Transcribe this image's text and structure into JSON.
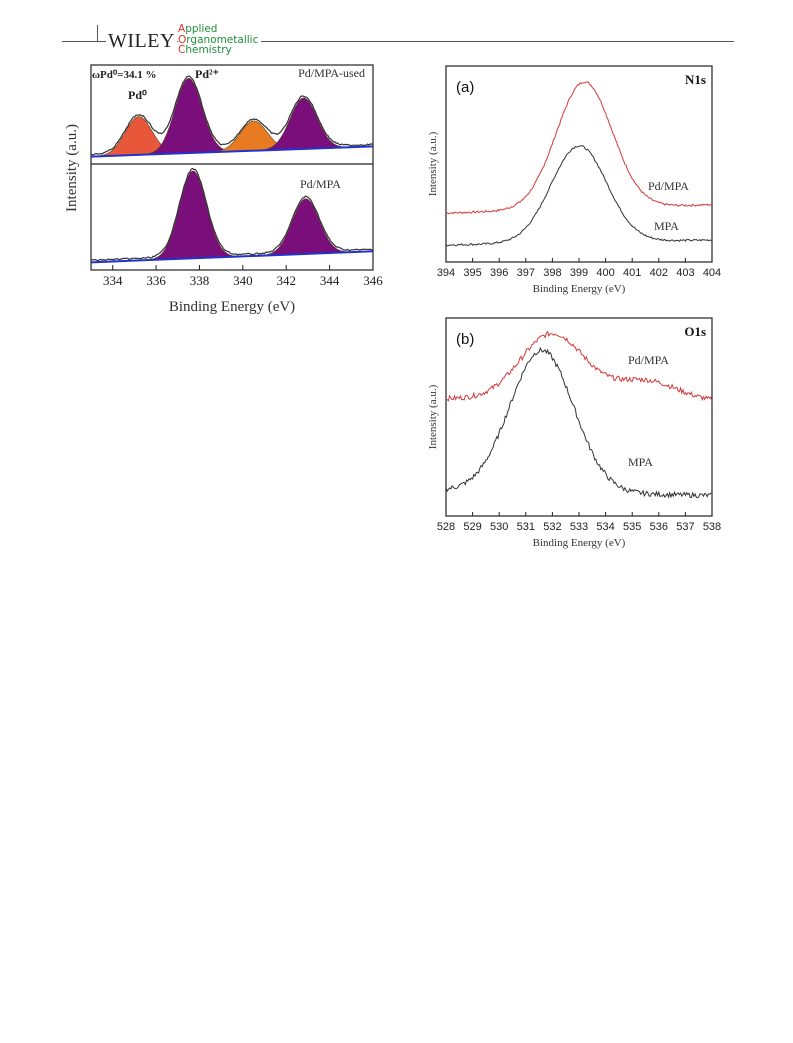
{
  "header": {
    "publisher": "WILEY",
    "journal_line1": "Applied",
    "journal_line2": "Organometallic",
    "journal_line3": "Chemistry",
    "accent_colors": {
      "green": "#1f8f3a",
      "red": "#d9342b"
    }
  },
  "figure_left": {
    "ylabel": "Intensity (a.u.)",
    "xlabel": "Binding Energy (eV)",
    "xticks": [
      "334",
      "336",
      "338",
      "340",
      "342",
      "344",
      "346"
    ],
    "top": {
      "sample_label": "Pd/MPA-used",
      "ratio_label": "ωPd⁰=34.1 %",
      "peak_label_pd0": "Pd⁰",
      "peak_label_pd2": "Pd²⁺"
    },
    "bottom": {
      "sample_label": "Pd/MPA"
    }
  },
  "chart_data": [
    {
      "type": "line",
      "panel": "(a)",
      "title": "N1s",
      "xlabel": "Binding Energy (eV)",
      "ylabel": "Intensity (a.u.)",
      "xlim": [
        394,
        404
      ],
      "xticks": [
        "394",
        "395",
        "396",
        "397",
        "398",
        "399",
        "400",
        "401",
        "402",
        "403",
        "404"
      ],
      "series": [
        {
          "name": "Pd/MPA",
          "color": "#d43a3a",
          "peak_center": 399.2,
          "baseline_left": 0.22,
          "baseline_right": 0.27,
          "peak_height": 1.0
        },
        {
          "name": "MPA",
          "color": "#333333",
          "peak_center": 399.0,
          "baseline_left": 0.03,
          "baseline_right": 0.06,
          "peak_height": 0.62
        }
      ]
    },
    {
      "type": "line",
      "panel": "(b)",
      "title": "O1s",
      "xlabel": "Binding Energy (eV)",
      "ylabel": "Intensity (a.u.)",
      "xlim": [
        528,
        538
      ],
      "xticks": [
        "528",
        "529",
        "530",
        "531",
        "532",
        "533",
        "534",
        "535",
        "536",
        "537",
        "538"
      ],
      "series": [
        {
          "name": "Pd/MPA",
          "color": "#d43a3a",
          "peak_center": 532.0,
          "baseline_left": 0.62,
          "baseline_right": 0.6,
          "peak_height": 1.0
        },
        {
          "name": "MPA",
          "color": "#333333",
          "peak_center": 531.6,
          "baseline_left": 0.08,
          "baseline_right": 0.05,
          "peak_height": 0.9
        }
      ]
    },
    {
      "type": "area",
      "panel": "Pd3d",
      "xlim": [
        333,
        346
      ],
      "series": [
        {
          "name": "Pd/MPA-used",
          "peaks": [
            {
              "label": "Pd⁰",
              "center": 335.2,
              "height": 0.45,
              "color": "#e8573a"
            },
            {
              "label": "Pd²⁺",
              "center": 337.5,
              "height": 0.88,
              "color": "#7a0f7c"
            },
            {
              "label": "Pd⁰",
              "center": 340.5,
              "height": 0.35,
              "color": "#e87a22"
            },
            {
              "label": "Pd²⁺",
              "center": 342.8,
              "height": 0.6,
              "color": "#7a0f7c"
            }
          ]
        },
        {
          "name": "Pd/MPA",
          "peaks": [
            {
              "label": "Pd²⁺",
              "center": 337.7,
              "height": 0.95,
              "color": "#7a0f7c"
            },
            {
              "label": "Pd²⁺",
              "center": 342.9,
              "height": 0.6,
              "color": "#7a0f7c"
            }
          ]
        }
      ]
    }
  ]
}
